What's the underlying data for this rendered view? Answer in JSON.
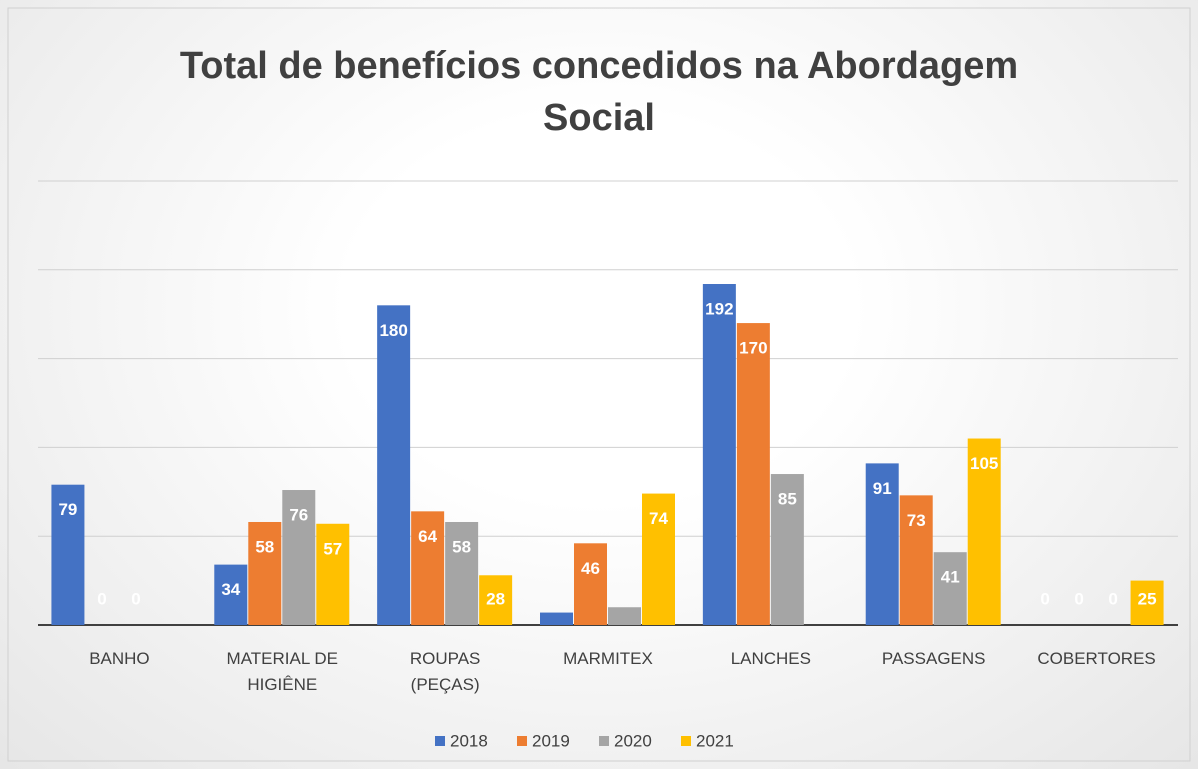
{
  "chart_data": {
    "type": "bar",
    "title": "Total de benefícios concedidos na Abordagem Social",
    "categories": [
      "BANHO",
      "MATERIAL DE HIGIÊNE",
      "ROUPAS (PEÇAS)",
      "MARMITEX",
      "LANCHES",
      "PASSAGENS",
      "COBERTORES"
    ],
    "series": [
      {
        "name": "2018",
        "color": "#4472c4",
        "values": [
          79,
          34,
          180,
          7,
          192,
          91,
          0
        ],
        "value_labels": [
          "79",
          "34",
          "180",
          null,
          "192",
          "91",
          "0"
        ]
      },
      {
        "name": "2019",
        "color": "#ed7d31",
        "values": [
          0,
          58,
          64,
          46,
          170,
          73,
          0
        ],
        "value_labels": [
          "0",
          "58",
          "64",
          "46",
          "170",
          "73",
          "0"
        ]
      },
      {
        "name": "2020",
        "color": "#a5a5a5",
        "values": [
          0,
          76,
          58,
          10,
          85,
          41,
          0
        ],
        "value_labels": [
          "0",
          "76",
          "58",
          null,
          "85",
          "41",
          "0"
        ]
      },
      {
        "name": "2021",
        "color": "#ffc000",
        "values": [
          null,
          57,
          28,
          74,
          null,
          105,
          25
        ],
        "value_labels": [
          null,
          "57",
          "28",
          "74",
          null,
          "105",
          "25"
        ]
      }
    ],
    "ylim": [
      0,
      250
    ],
    "yticks": [
      0,
      50,
      100,
      150,
      200,
      250
    ],
    "grid": true,
    "legend": "bottom"
  }
}
